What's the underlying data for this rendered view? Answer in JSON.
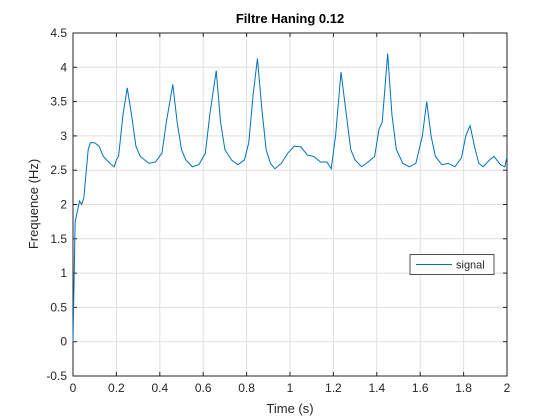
{
  "chart_data": {
    "type": "line",
    "title": "Filtre Haning 0.12",
    "xlabel": "Time (s)",
    "ylabel": "Frequence (Hz)",
    "x": [
      0,
      0.005,
      0.01,
      0.02,
      0.03,
      0.04,
      0.05,
      0.07,
      0.08,
      0.1,
      0.12,
      0.14,
      0.17,
      0.19,
      0.2,
      0.21,
      0.23,
      0.25,
      0.27,
      0.29,
      0.31,
      0.35,
      0.38,
      0.41,
      0.43,
      0.46,
      0.48,
      0.5,
      0.52,
      0.55,
      0.58,
      0.61,
      0.63,
      0.66,
      0.68,
      0.7,
      0.73,
      0.76,
      0.79,
      0.81,
      0.83,
      0.85,
      0.87,
      0.89,
      0.91,
      0.93,
      0.96,
      0.99,
      1.02,
      1.05,
      1.08,
      1.11,
      1.14,
      1.17,
      1.19,
      1.21,
      1.235,
      1.26,
      1.28,
      1.3,
      1.33,
      1.36,
      1.39,
      1.41,
      1.425,
      1.45,
      1.47,
      1.49,
      1.52,
      1.55,
      1.58,
      1.61,
      1.63,
      1.65,
      1.67,
      1.7,
      1.73,
      1.76,
      1.79,
      1.81,
      1.83,
      1.85,
      1.87,
      1.89,
      1.92,
      1.94,
      1.97,
      1.99,
      2.0
    ],
    "series": [
      {
        "name": "signal",
        "color": "#0072bd",
        "values": [
          0,
          0.9,
          1.75,
          1.9,
          2.05,
          2.0,
          2.1,
          2.8,
          2.9,
          2.9,
          2.85,
          2.7,
          2.6,
          2.55,
          2.65,
          2.7,
          3.3,
          3.7,
          3.3,
          2.85,
          2.7,
          2.6,
          2.62,
          2.75,
          3.2,
          3.75,
          3.2,
          2.8,
          2.65,
          2.55,
          2.58,
          2.75,
          3.3,
          3.95,
          3.2,
          2.8,
          2.65,
          2.58,
          2.65,
          2.9,
          3.6,
          4.13,
          3.4,
          2.8,
          2.6,
          2.52,
          2.6,
          2.75,
          2.85,
          2.84,
          2.72,
          2.7,
          2.62,
          2.62,
          2.52,
          3.0,
          3.93,
          3.3,
          2.8,
          2.65,
          2.55,
          2.62,
          2.7,
          3.1,
          3.2,
          4.2,
          3.3,
          2.8,
          2.6,
          2.55,
          2.6,
          3.0,
          3.5,
          3.0,
          2.7,
          2.58,
          2.6,
          2.55,
          2.68,
          3.0,
          3.15,
          2.85,
          2.6,
          2.55,
          2.65,
          2.7,
          2.58,
          2.55,
          2.7
        ]
      }
    ],
    "xlim": [
      0,
      2
    ],
    "xticks": [
      0,
      0.2,
      0.4,
      0.6,
      0.8,
      1,
      1.2,
      1.4,
      1.6,
      1.8,
      2
    ],
    "ylim": [
      -0.5,
      4.5
    ],
    "yticks": [
      -0.5,
      0,
      0.5,
      1,
      1.5,
      2,
      2.5,
      3,
      3.5,
      4,
      4.5
    ],
    "grid": true,
    "legend": "east"
  }
}
